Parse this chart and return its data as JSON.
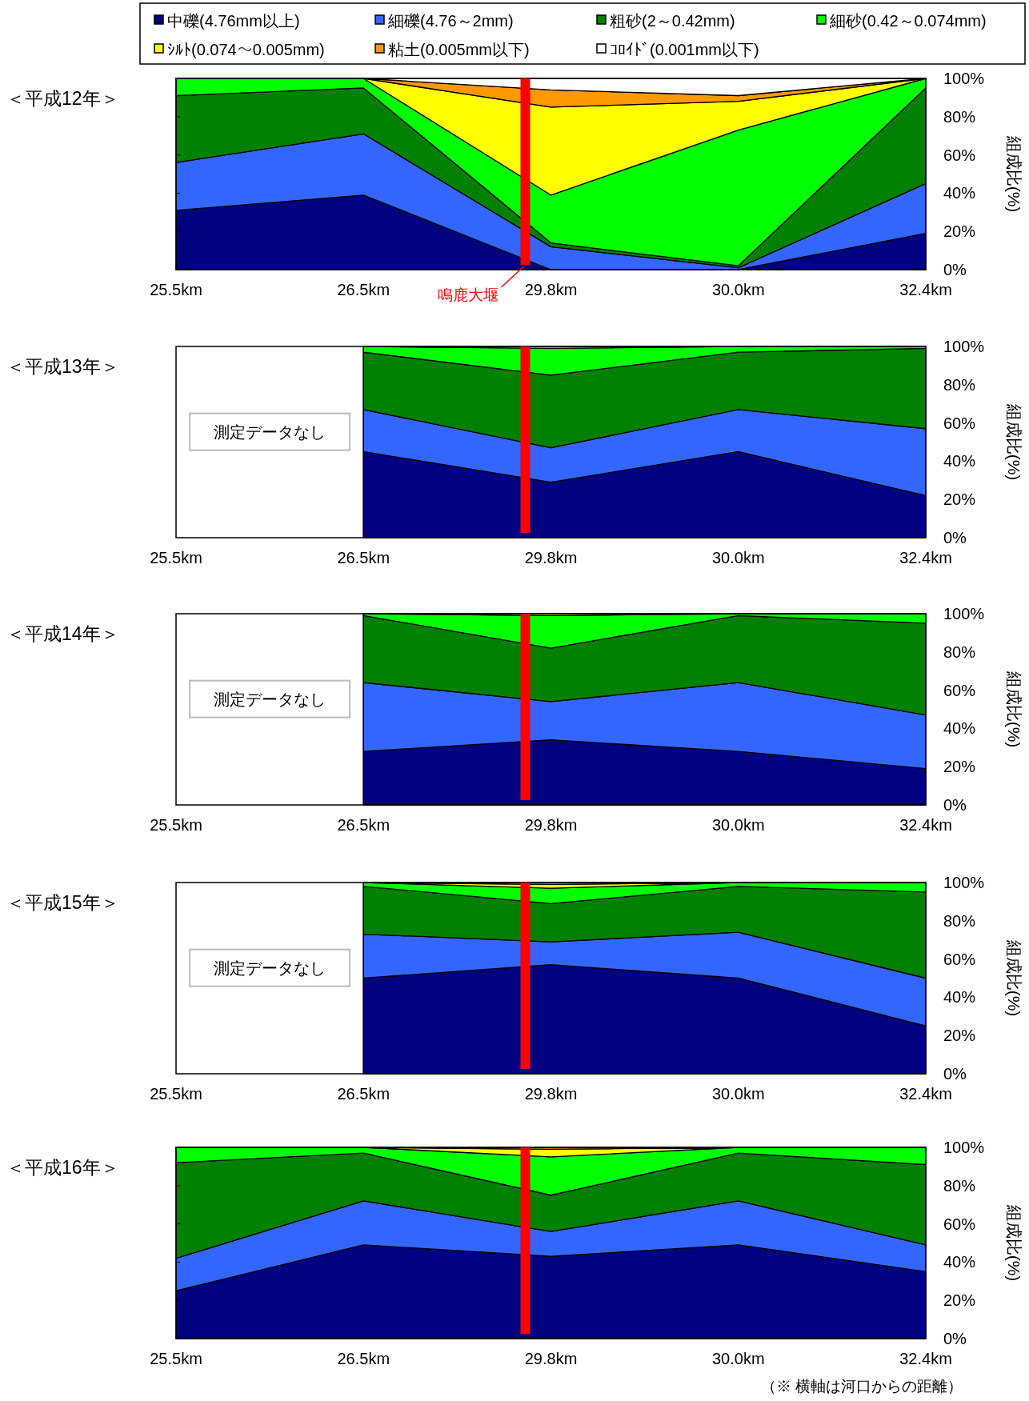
{
  "chart_data": [
    {
      "type": "area",
      "stacked": true,
      "title": "＜平成12年＞",
      "ylabel": "組成比(%)",
      "legend": "top",
      "categories": [
        "25.5km",
        "26.5km",
        "29.8km",
        "30.0km",
        "32.4km"
      ],
      "ylim": [
        0,
        100
      ],
      "yticks": [
        {
          "value": 0,
          "label": "0%"
        },
        {
          "value": 20,
          "label": "20%"
        },
        {
          "value": 40,
          "label": "40%"
        },
        {
          "value": 60,
          "label": "60%"
        },
        {
          "value": 80,
          "label": "80%"
        },
        {
          "value": 100,
          "label": "100%"
        }
      ],
      "series": [
        {
          "name": "中礫(4.76mm以上)",
          "color": "#000080",
          "values": [
            31,
            39,
            0,
            0,
            19
          ]
        },
        {
          "name": "細礫(4.76～2mm)",
          "color": "#3366ff",
          "values": [
            25,
            32,
            12,
            1,
            26
          ]
        },
        {
          "name": "粗砂(2～0.42mm)",
          "color": "#008000",
          "values": [
            35,
            24,
            2,
            1,
            50
          ]
        },
        {
          "name": "細砂(0.42～0.074mm)",
          "color": "#00ff00",
          "values": [
            9,
            5,
            25,
            71,
            5
          ]
        },
        {
          "name": "ｼﾙﾄ(0.074～0.005mm)",
          "color": "#ffff00",
          "values": [
            0,
            0,
            46,
            15,
            0
          ]
        },
        {
          "name": "粘土(0.005mm以下)",
          "color": "#ff9900",
          "values": [
            0,
            0,
            9,
            3,
            0
          ]
        },
        {
          "name": "ｺﾛｲﾄﾞ(0.001mm以下)",
          "color": "#ffffff",
          "values": [
            0,
            0,
            6,
            9,
            0
          ]
        }
      ],
      "ref_lines": [
        {
          "axis": "x",
          "value": "29.8km",
          "label": "鳴鹿大堰",
          "color": "#ff0000"
        }
      ]
    },
    {
      "type": "area",
      "stacked": true,
      "title": "＜平成13年＞",
      "ylabel": "組成比(%)",
      "categories": [
        "25.5km",
        "26.5km",
        "29.8km",
        "30.0km",
        "32.4km"
      ],
      "ylim": [
        0,
        100
      ],
      "yticks": [
        {
          "value": 0,
          "label": "0%"
        },
        {
          "value": 20,
          "label": "20%"
        },
        {
          "value": 40,
          "label": "40%"
        },
        {
          "value": 60,
          "label": "60%"
        },
        {
          "value": 80,
          "label": "80%"
        },
        {
          "value": 100,
          "label": "100%"
        }
      ],
      "series": [
        {
          "color": "#000080",
          "values": [
            null,
            45,
            29,
            45,
            22
          ]
        },
        {
          "color": "#3366ff",
          "values": [
            null,
            22,
            18,
            22,
            35
          ]
        },
        {
          "color": "#008000",
          "values": [
            null,
            30,
            38,
            30,
            42
          ]
        },
        {
          "color": "#00ff00",
          "values": [
            null,
            3,
            14,
            3,
            1
          ]
        },
        {
          "color": "#ffff00",
          "values": [
            null,
            0,
            1,
            0,
            0
          ]
        }
      ],
      "ref_lines": [
        {
          "axis": "x",
          "value": "29.8km",
          "color": "#ff0000"
        }
      ],
      "annotations": [
        "測定データなし"
      ]
    },
    {
      "type": "area",
      "stacked": true,
      "title": "＜平成14年＞",
      "ylabel": "組成比(%)",
      "categories": [
        "25.5km",
        "26.5km",
        "29.8km",
        "30.0km",
        "32.4km"
      ],
      "ylim": [
        0,
        100
      ],
      "yticks": [
        {
          "value": 0,
          "label": "0%"
        },
        {
          "value": 20,
          "label": "20%"
        },
        {
          "value": 40,
          "label": "40%"
        },
        {
          "value": 60,
          "label": "60%"
        },
        {
          "value": 80,
          "label": "80%"
        },
        {
          "value": 100,
          "label": "100%"
        }
      ],
      "series": [
        {
          "color": "#000080",
          "values": [
            null,
            28,
            34,
            28,
            19
          ]
        },
        {
          "color": "#3366ff",
          "values": [
            null,
            36,
            20,
            36,
            28
          ]
        },
        {
          "color": "#008000",
          "values": [
            null,
            35,
            28,
            35,
            48
          ]
        },
        {
          "color": "#00ff00",
          "values": [
            null,
            1,
            17,
            1,
            5
          ]
        },
        {
          "color": "#ffff00",
          "values": [
            null,
            0,
            1,
            0,
            0
          ]
        }
      ],
      "ref_lines": [
        {
          "axis": "x",
          "value": "29.8km",
          "color": "#ff0000"
        }
      ],
      "annotations": [
        "測定データなし"
      ]
    },
    {
      "type": "area",
      "stacked": true,
      "title": "＜平成15年＞",
      "ylabel": "組成比(%)",
      "categories": [
        "25.5km",
        "26.5km",
        "29.8km",
        "30.0km",
        "32.4km"
      ],
      "ylim": [
        0,
        100
      ],
      "yticks": [
        {
          "value": 0,
          "label": "0%"
        },
        {
          "value": 20,
          "label": "20%"
        },
        {
          "value": 40,
          "label": "40%"
        },
        {
          "value": 60,
          "label": "60%"
        },
        {
          "value": 80,
          "label": "80%"
        },
        {
          "value": 100,
          "label": "100%"
        }
      ],
      "series": [
        {
          "color": "#000080",
          "values": [
            null,
            50,
            57,
            50,
            25
          ]
        },
        {
          "color": "#3366ff",
          "values": [
            null,
            23,
            12,
            24,
            25
          ]
        },
        {
          "color": "#008000",
          "values": [
            null,
            25,
            20,
            24,
            45
          ]
        },
        {
          "color": "#00ff00",
          "values": [
            null,
            2,
            8,
            2,
            5
          ]
        },
        {
          "color": "#ffff00",
          "values": [
            null,
            0,
            2,
            0,
            0
          ]
        },
        {
          "color": "#ff9900",
          "values": [
            null,
            0,
            1,
            0,
            0
          ]
        }
      ],
      "ref_lines": [
        {
          "axis": "x",
          "value": "29.8km",
          "color": "#ff0000"
        }
      ],
      "annotations": [
        "測定データなし"
      ]
    },
    {
      "type": "area",
      "stacked": true,
      "title": "＜平成16年＞",
      "ylabel": "組成比(%)",
      "categories": [
        "25.5km",
        "26.5km",
        "29.8km",
        "30.0km",
        "32.4km"
      ],
      "ylim": [
        0,
        100
      ],
      "yticks": [
        {
          "value": 0,
          "label": "0%"
        },
        {
          "value": 20,
          "label": "20%"
        },
        {
          "value": 40,
          "label": "40%"
        },
        {
          "value": 60,
          "label": "60%"
        },
        {
          "value": 80,
          "label": "80%"
        },
        {
          "value": 100,
          "label": "100%"
        }
      ],
      "series": [
        {
          "color": "#000080",
          "values": [
            25,
            49,
            43,
            49,
            35
          ]
        },
        {
          "color": "#3366ff",
          "values": [
            17,
            23,
            13,
            23,
            14
          ]
        },
        {
          "color": "#008000",
          "values": [
            50,
            25,
            19,
            25,
            42
          ]
        },
        {
          "color": "#00ff00",
          "values": [
            8,
            3,
            20,
            3,
            9
          ]
        },
        {
          "color": "#ffff00",
          "values": [
            0,
            0,
            4,
            0,
            0
          ]
        },
        {
          "color": "#ff9900",
          "values": [
            0,
            0,
            1,
            0,
            0
          ]
        }
      ],
      "ref_lines": [
        {
          "axis": "x",
          "value": "29.8km",
          "color": "#ff0000"
        }
      ],
      "annotations": [
        "（※ 横軸は河口からの距離）"
      ]
    }
  ]
}
